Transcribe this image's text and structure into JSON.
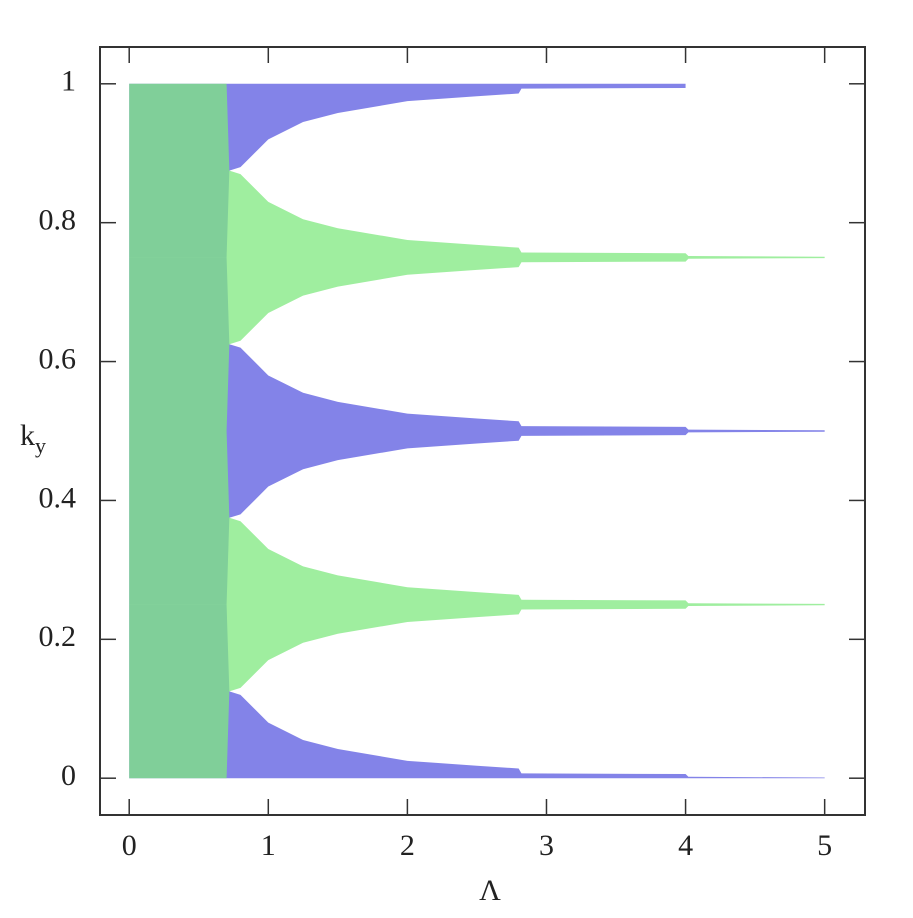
{
  "chart_data": {
    "type": "band",
    "xlabel": "Λ",
    "ylabel": "k",
    "ylabel_subscript": "y",
    "xlim": [
      -0.21,
      5.29
    ],
    "ylim": [
      -0.053,
      1.053
    ],
    "xticks": [
      0,
      1,
      2,
      3,
      4,
      5
    ],
    "yticks": [
      0,
      0.2,
      0.4,
      0.6,
      0.8,
      1
    ],
    "x": [
      0,
      0.7,
      0.72,
      0.8,
      0.9,
      1,
      1.25,
      1.5,
      2,
      2.5,
      2.8,
      2.82,
      4,
      4.02,
      5
    ],
    "series": [
      {
        "color": "#5a5ae0",
        "y_low": [
          0,
          0,
          0,
          0,
          0,
          0,
          0,
          0,
          0,
          0,
          0,
          0,
          0,
          0,
          0
        ],
        "y_high": [
          0.25,
          0.25,
          0.125,
          0.12,
          0.1,
          0.08,
          0.055,
          0.042,
          0.025,
          0.018,
          0.014,
          0.007,
          0.006,
          0.002,
          0.001
        ]
      },
      {
        "color": "#5a5ae0",
        "y_low": [
          0.25,
          0.25,
          0.375,
          0.38,
          0.4,
          0.42,
          0.445,
          0.458,
          0.475,
          0.482,
          0.486,
          0.493,
          0.494,
          0.498,
          0.499
        ],
        "y_high": [
          0.75,
          0.75,
          0.625,
          0.62,
          0.6,
          0.58,
          0.555,
          0.542,
          0.525,
          0.518,
          0.514,
          0.507,
          0.506,
          0.502,
          0.501
        ]
      },
      {
        "color": "#5a5ae0",
        "y_low": [
          0.75,
          0.75,
          0.875,
          0.88,
          0.9,
          0.92,
          0.945,
          0.958,
          0.975,
          0.982,
          0.986,
          0.993,
          0.994,
          null,
          null
        ],
        "y_high": [
          1,
          1,
          1,
          1,
          1,
          1,
          1,
          1,
          1,
          1,
          1,
          1,
          1,
          null,
          null
        ]
      },
      {
        "color": "#7fe87f",
        "y_low": [
          0,
          0,
          0.125,
          0.13,
          0.15,
          0.17,
          0.195,
          0.208,
          0.225,
          0.232,
          0.236,
          0.243,
          0.244,
          0.248,
          0.249
        ],
        "y_high": [
          0.5,
          0.5,
          0.375,
          0.37,
          0.35,
          0.33,
          0.305,
          0.292,
          0.275,
          0.268,
          0.264,
          0.257,
          0.256,
          0.252,
          0.251
        ]
      },
      {
        "color": "#7fe87f",
        "y_low": [
          0.5,
          0.5,
          0.625,
          0.63,
          0.65,
          0.67,
          0.695,
          0.708,
          0.725,
          0.732,
          0.736,
          0.743,
          0.744,
          0.748,
          0.749
        ],
        "y_high": [
          1,
          1,
          0.875,
          0.87,
          0.85,
          0.83,
          0.805,
          0.792,
          0.775,
          0.768,
          0.764,
          0.757,
          0.756,
          0.752,
          0.751
        ]
      }
    ]
  }
}
